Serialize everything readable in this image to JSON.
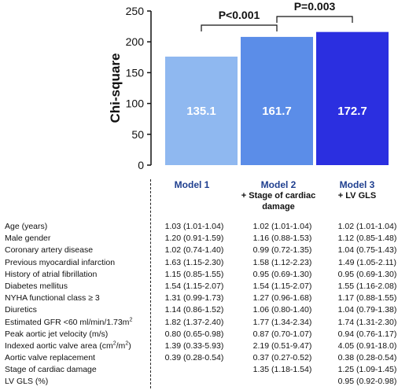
{
  "chart_data": {
    "type": "bar",
    "ylabel": "Chi-square",
    "ylim": [
      0,
      250
    ],
    "yticks": [
      "0",
      "50",
      "100",
      "150",
      "200",
      "250"
    ],
    "categories": [
      "Model 1",
      "Model 2",
      "Model 3"
    ],
    "values": [
      135.1,
      161.7,
      172.7
    ],
    "bar_heights": [
      176,
      208,
      216
    ],
    "data_labels": [
      "135.1",
      "161.7",
      "172.7"
    ],
    "bar_colors": [
      "#8fb8f0",
      "#5b8de8",
      "#2b2fe0"
    ],
    "significance": [
      {
        "from": 0,
        "to": 1,
        "label": "P<0.001"
      },
      {
        "from": 1,
        "to": 2,
        "label": "P=0.003"
      }
    ]
  },
  "models": [
    {
      "title": "Model 1",
      "subtitle": ""
    },
    {
      "title": "Model 2",
      "subtitle": "+ Stage of cardiac damage"
    },
    {
      "title": "Model 3",
      "subtitle": "+ LV GLS"
    }
  ],
  "table": {
    "rows": [
      {
        "label": "Age (years)",
        "m1": "1.03 (1.01-1.04)",
        "m2": "1.02 (1.01-1.04)",
        "m3": "1.02 (1.01-1.04)"
      },
      {
        "label": "Male gender",
        "m1": "1.20 (0.91-1.59)",
        "m2": "1.16 (0.88-1.53)",
        "m3": "1.12 (0.85-1.48)"
      },
      {
        "label": "Coronary artery disease",
        "m1": "1.02 (0.74-1.40)",
        "m2": "0.99 (0.72-1.35)",
        "m3": "1.04 (0.75-1.43)"
      },
      {
        "label": "Previous myocardial infarction",
        "m1": "1.63 (1.15-2.30)",
        "m2": "1.58 (1.12-2.23)",
        "m3": "1.49 (1.05-2.11)"
      },
      {
        "label": "History of atrial fibrillation",
        "m1": "1.15 (0.85-1.55)",
        "m2": "0.95 (0.69-1.30)",
        "m3": "0.95 (0.69-1.30)"
      },
      {
        "label": "Diabetes mellitus",
        "m1": "1.54 (1.15-2.07)",
        "m2": "1.54 (1.15-2.07)",
        "m3": "1.55 (1.16-2.08)"
      },
      {
        "label": "NYHA  functional class ≥ 3",
        "m1": "1.31 (0.99-1.73)",
        "m2": "1.27 (0.96-1.68)",
        "m3": "1.17 (0.88-1.55)"
      },
      {
        "label": "Diuretics",
        "m1": "1.14 (0.86-1.52)",
        "m2": "1.06 (0.80-1.40)",
        "m3": "1.04 (0.79-1.38)"
      },
      {
        "label": "Estimated GFR <60 ml/min/1.73m",
        "label_sup": "2",
        "m1": "1.82 (1.37-2.40)",
        "m2": "1.77 (1.34-2.34)",
        "m3": "1.74 (1.31-2.30)"
      },
      {
        "label": "Peak aortic jet velocity (m/s)",
        "m1": "0.80 (0.65-0.98)",
        "m2": "0.87 (0.70-1.07)",
        "m3": "0.94 (0.76-1.17)"
      },
      {
        "label": "Indexed aortic valve area (cm",
        "label_sup": "2",
        "label_mid": "/m",
        "label_sup2": "2",
        "label_end": ")",
        "m1": "1.39 (0.33-5.93)",
        "m2": "2.19 (0.51-9.47)",
        "m3": "4.05 (0.91-18.0)"
      },
      {
        "label": "Aortic valve replacement",
        "m1": "0.39 (0.28-0.54)",
        "m2": "0.37 (0.27-0.52)",
        "m3": "0.38 (0.28-0.54)"
      },
      {
        "label": "Stage of cardiac damage",
        "m1": "",
        "m2": "1.35 (1.18-1.54)",
        "m3": "1.25 (1.09-1.45)"
      },
      {
        "label": "LV GLS (%)",
        "m1": "",
        "m2": "",
        "m3": "0.95 (0.92-0.98)"
      }
    ]
  }
}
